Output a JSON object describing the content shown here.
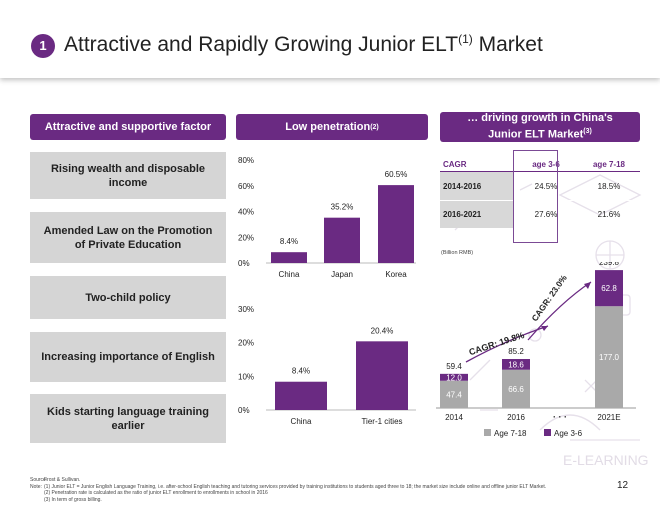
{
  "header": {
    "number": "1",
    "title": "Attractive and Rapidly Growing Junior ELT",
    "title_sup": "(1)",
    "title_tail": " Market"
  },
  "pills": {
    "factors": "Attractive and supportive factor",
    "penetration": "Low penetration",
    "penetration_sup": "(2)",
    "growth_line1": "… driving growth in China's",
    "growth_line2": "Junior ELT Market",
    "growth_sup": "(3)"
  },
  "factors": [
    "Rising wealth and disposable income",
    "Amended Law on the Promotion of Private Education",
    "Two-child policy",
    "Increasing importance of English",
    "Kids starting language training earlier"
  ],
  "cagr_table": {
    "headers": [
      "CAGR",
      "age 3-6",
      "age 7-18"
    ],
    "rows": [
      [
        "2014-2016",
        "24.5%",
        "18.5%"
      ],
      [
        "2016-2021",
        "27.6%",
        "21.6%"
      ]
    ]
  },
  "billion_label": "(Billion RMB)",
  "cagr_annotations": [
    "CAGR: 19.8%",
    "CAGR: 23.0%"
  ],
  "chart_data": [
    {
      "type": "bar",
      "categories": [
        "China",
        "Japan",
        "Korea"
      ],
      "values": [
        8.4,
        35.2,
        60.5
      ],
      "value_labels": [
        "8.4%",
        "35.2%",
        "60.5%"
      ],
      "yticks": [
        "0%",
        "20%",
        "40%",
        "60%",
        "80%"
      ],
      "ylim": [
        0,
        80
      ],
      "color": "#6a2a82"
    },
    {
      "type": "bar",
      "categories": [
        "China",
        "Tier-1 cities"
      ],
      "values": [
        8.4,
        20.4
      ],
      "value_labels": [
        "8.4%",
        "20.4%"
      ],
      "yticks": [
        "0%",
        "10%",
        "20%",
        "30%"
      ],
      "ylim": [
        0,
        30
      ],
      "color": "#6a2a82"
    },
    {
      "type": "bar",
      "stacked": true,
      "categories": [
        "2014",
        "2016",
        "...",
        "2021E"
      ],
      "series": [
        {
          "name": "Age 7-18",
          "values": [
            47.4,
            66.6,
            null,
            177.0
          ],
          "labels": [
            "47.4",
            "66.6",
            "",
            "177.0"
          ],
          "color": "#a9a9a9"
        },
        {
          "name": "Age 3-6",
          "values": [
            12.0,
            18.6,
            null,
            62.8
          ],
          "labels": [
            "12.0",
            "18.6",
            "",
            "62.8"
          ],
          "color": "#6a2a82"
        }
      ],
      "totals": [
        "59.4",
        "85.2",
        "",
        "239.8"
      ]
    }
  ],
  "footnotes": {
    "source_key": "Source:",
    "source": "Frost & Sullivan.",
    "note_key": "Note:",
    "notes": [
      "(1)   Junior ELT = Junior English Language Training, i.e. after-school English teaching and tutoring services provided by training institutions to students aged three to 18; the market size include online and offline junior ELT Market.",
      "(2)   Penetration rate is calculated as the ratio of junior ELT enrollment to enrollments in school in 2016",
      "(3)   In term of gross billing."
    ]
  },
  "page_number": "12"
}
